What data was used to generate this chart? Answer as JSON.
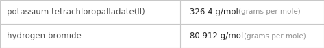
{
  "rows": [
    {
      "name": "potassium tetrachloropalladate(II)",
      "value": "326.4",
      "unit": "g/mol",
      "unit_extra": "(grams per mole)"
    },
    {
      "name": "hydrogen bromide",
      "value": "80.912",
      "unit": "g/mol",
      "unit_extra": "(grams per mole)"
    }
  ],
  "col_split": 0.555,
  "background_color": "#ffffff",
  "border_color": "#c8c8c8",
  "text_color_name": "#505050",
  "text_color_value": "#222222",
  "text_color_unit_extra": "#909090",
  "font_size_name": 8.5,
  "font_size_value": 8.5,
  "font_size_unit": 8.5,
  "font_size_unit_extra": 7.5
}
